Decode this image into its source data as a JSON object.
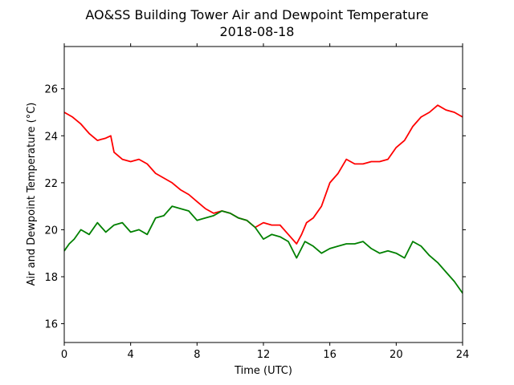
{
  "chart_data": {
    "type": "line",
    "title": "AO&SS Building Tower Air and Dewpoint Temperature",
    "subtitle": "2018-08-18",
    "xlabel": "Time (UTC)",
    "ylabel": "Air and Dewpoint Temperature (°C)",
    "xlim": [
      0,
      24
    ],
    "ylim": [
      15.2,
      27.8
    ],
    "xticks": [
      0,
      4,
      8,
      12,
      16,
      20,
      24
    ],
    "yticks": [
      16,
      18,
      20,
      22,
      24,
      26
    ],
    "grid": false,
    "legend": "none",
    "series": [
      {
        "color": "#ff0000",
        "x": [
          0,
          0.5,
          1,
          1.5,
          2,
          2.5,
          2.8,
          3,
          3.5,
          4,
          4.5,
          5,
          5.5,
          6,
          6.5,
          7,
          7.5,
          8,
          8.5,
          9,
          9.5,
          10,
          10.5,
          11,
          11.5,
          12,
          12.5,
          13,
          13.5,
          14,
          14.3,
          14.6,
          15,
          15.5,
          16,
          16.5,
          17,
          17.5,
          18,
          18.5,
          19,
          19.5,
          20,
          20.5,
          21,
          21.5,
          22,
          22.5,
          23,
          23.5,
          24
        ],
        "y": [
          25.0,
          24.8,
          24.5,
          24.1,
          23.8,
          23.9,
          24.0,
          23.3,
          23.0,
          22.9,
          23.0,
          22.8,
          22.4,
          22.2,
          22.0,
          21.7,
          21.5,
          21.2,
          20.9,
          20.7,
          20.8,
          20.7,
          20.5,
          20.4,
          20.1,
          20.3,
          20.2,
          20.2,
          19.8,
          19.4,
          19.8,
          20.3,
          20.5,
          21.0,
          22.0,
          22.4,
          23.0,
          22.8,
          22.8,
          22.9,
          22.9,
          23.0,
          23.5,
          23.8,
          24.4,
          24.8,
          25.0,
          25.3,
          25.1,
          25.0,
          24.8
        ]
      },
      {
        "color": "#008000",
        "x": [
          0,
          0.3,
          0.6,
          1,
          1.5,
          2,
          2.5,
          3,
          3.5,
          4,
          4.5,
          5,
          5.5,
          6,
          6.5,
          7,
          7.5,
          8,
          8.5,
          9,
          9.5,
          10,
          10.5,
          11,
          11.5,
          12,
          12.5,
          13,
          13.5,
          14,
          14.5,
          15,
          15.5,
          16,
          16.5,
          17,
          17.5,
          18,
          18.5,
          19,
          19.5,
          20,
          20.5,
          21,
          21.5,
          22,
          22.5,
          23,
          23.5,
          24
        ],
        "y": [
          19.1,
          19.4,
          19.6,
          20.0,
          19.8,
          20.3,
          19.9,
          20.2,
          20.3,
          19.9,
          20.0,
          19.8,
          20.5,
          20.6,
          21.0,
          20.9,
          20.8,
          20.4,
          20.5,
          20.6,
          20.8,
          20.7,
          20.5,
          20.4,
          20.1,
          19.6,
          19.8,
          19.7,
          19.5,
          18.8,
          19.5,
          19.3,
          19.0,
          19.2,
          19.3,
          19.4,
          19.4,
          19.5,
          19.2,
          19.0,
          19.1,
          19.0,
          18.8,
          19.5,
          19.3,
          18.9,
          18.6,
          18.2,
          17.8,
          17.3
        ]
      }
    ]
  }
}
